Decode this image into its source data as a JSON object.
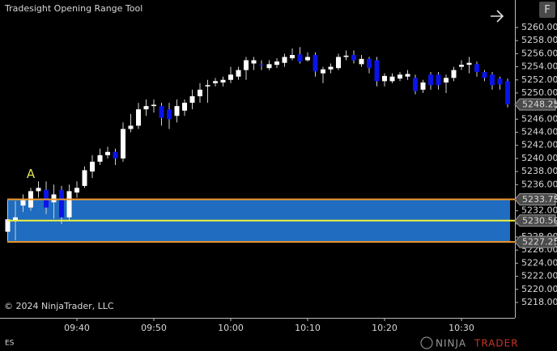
{
  "chart_data": {
    "type": "candlestick",
    "title": "Tradesight Opening Range Tool",
    "copyright": "© 2024 NinjaTrader, LLC",
    "instrument": "ES",
    "logo": {
      "left": "NINJA",
      "right": "TRADER"
    },
    "button": "F",
    "categories": [
      null,
      null,
      null,
      null,
      null,
      null,
      null,
      null,
      null,
      "09:40",
      null,
      null,
      null,
      null,
      null,
      null,
      null,
      null,
      null,
      "09:50",
      null,
      null,
      null,
      null,
      null,
      null,
      null,
      null,
      null,
      "10:00",
      null,
      null,
      null,
      null,
      null,
      null,
      null,
      null,
      null,
      "10:10",
      null,
      null,
      null,
      null,
      null,
      null,
      null,
      null,
      null,
      "10:20",
      null,
      null,
      null,
      null,
      null,
      null,
      null,
      null,
      null,
      "10:30",
      null,
      null,
      null,
      null,
      null,
      null
    ],
    "open": [
      5228.8,
      5230.5,
      5232.8,
      5232.5,
      5235,
      5235.2,
      5233.3,
      5235.2,
      5231,
      5234.8,
      5235.8,
      5238,
      5239.5,
      5240.5,
      5241,
      5240,
      5244.5,
      5245,
      5247.5,
      5248,
      5248,
      5247.5,
      5246.5,
      5247.3,
      5248.5,
      5249.5,
      5251,
      5251.5,
      5251.6,
      5252,
      5252.5,
      5253.5,
      5254.5,
      5254.3,
      5253.8,
      5254.3,
      5254.6,
      5255.3,
      5255.9,
      5255,
      5255.8,
      5253,
      5253.6,
      5253.8,
      5255.5,
      5255.8,
      5254.4,
      5255.2,
      5255,
      5251.8,
      5251.8,
      5252.2,
      5252.5,
      5252.3,
      5250.5,
      5252.8,
      5252.8,
      5251.6,
      5252.3,
      5254,
      5254.3,
      5254.4,
      5253.2,
      5252.8,
      5252.2,
      5251.8
    ],
    "high": [
      5233.6,
      5233.5,
      5234.5,
      5235.5,
      5236.5,
      5236.5,
      5236,
      5235.8,
      5236,
      5236.5,
      5238.8,
      5240.5,
      5241.5,
      5241.8,
      5241.5,
      5245.5,
      5246.8,
      5248.5,
      5249,
      5249,
      5248.5,
      5248.5,
      5249,
      5249,
      5250.5,
      5251.5,
      5252,
      5252.3,
      5252.5,
      5254,
      5254,
      5255.5,
      5255.5,
      5255,
      5255,
      5255.3,
      5256,
      5256.8,
      5257,
      5256.2,
      5256.2,
      5254,
      5254.5,
      5256,
      5256.5,
      5256.5,
      5255.8,
      5255.5,
      5255.5,
      5253,
      5253,
      5253.2,
      5253.5,
      5252.8,
      5252,
      5253.2,
      5253.2,
      5252.8,
      5254,
      5255,
      5255.5,
      5254.8,
      5253.5,
      5253.2,
      5252.5,
      5252.2
    ],
    "low": [
      5227.4,
      5227.5,
      5231.8,
      5232,
      5234,
      5231.5,
      5230.8,
      5230,
      5230.5,
      5234,
      5235.5,
      5237,
      5239,
      5240,
      5239,
      5239.5,
      5244,
      5244.5,
      5246.5,
      5247,
      5245,
      5244.5,
      5245.5,
      5246.5,
      5247.5,
      5248.5,
      5248.5,
      5251,
      5251,
      5251.5,
      5252,
      5252,
      5253.5,
      5253.5,
      5253.5,
      5253.8,
      5254,
      5255,
      5254.5,
      5254.8,
      5252.5,
      5251.5,
      5253,
      5253.5,
      5255,
      5254.5,
      5254,
      5253,
      5251,
      5251,
      5251.5,
      5251.8,
      5252,
      5249.8,
      5250,
      5250.5,
      5250.5,
      5250,
      5251.8,
      5253.5,
      5253,
      5252.5,
      5251.8,
      5250.5,
      5250.5,
      5247.8
    ],
    "close": [
      5230.7,
      5231,
      5233.6,
      5235,
      5235.5,
      5232.5,
      5234.5,
      5231,
      5235,
      5235.5,
      5238.2,
      5239.5,
      5240.5,
      5241,
      5240,
      5244.5,
      5245,
      5247.5,
      5248,
      5248.2,
      5246.2,
      5246,
      5248,
      5248.5,
      5249.5,
      5250.5,
      5251.2,
      5251.8,
      5252,
      5252.8,
      5253.5,
      5255,
      5255,
      5254.2,
      5254.4,
      5254.8,
      5255.5,
      5255.8,
      5254.8,
      5255.5,
      5253.3,
      5253.6,
      5254,
      5255.5,
      5255.7,
      5255,
      5255.2,
      5253.8,
      5251.8,
      5252.6,
      5252.5,
      5252.8,
      5252.9,
      5250.3,
      5251.6,
      5251.2,
      5251.2,
      5252.3,
      5253.5,
      5254.3,
      5254.6,
      5253.2,
      5252.3,
      5251.2,
      5251.3,
      5248.25
    ],
    "up_color": "#ffffff",
    "down_color": "#0a14e6",
    "wick_color": "#d0d0d0",
    "annotation": {
      "text": "A",
      "index": 3,
      "y": 5237.6,
      "color": "#e4e45a"
    },
    "opening_range": {
      "values": [
        5233.75,
        5230.5,
        5227.25
      ],
      "value_labels": [
        "5233.75",
        "5230.50",
        "5227.25"
      ],
      "fill": "#1f6cc0",
      "edge_color": "#f0962a",
      "mid_color": "#f2f23c"
    },
    "last_price": 5248.25,
    "ylim": [
      5215.65,
      5264.2
    ],
    "yticks": [
      {
        "value": 5218,
        "label": "5218.00"
      },
      {
        "value": 5220,
        "label": "5220.00"
      },
      {
        "value": 5222,
        "label": "5222.00"
      },
      {
        "value": 5224,
        "label": "5224.00"
      },
      {
        "value": 5226,
        "label": "5226.00"
      },
      {
        "value": 5228,
        "label": "5228.00"
      },
      {
        "value": 5230,
        "label": "5230.00"
      },
      {
        "value": 5232,
        "label": "5232.00"
      },
      {
        "value": 5234,
        "label": "5234.00"
      },
      {
        "value": 5236,
        "label": "5236.00"
      },
      {
        "value": 5238,
        "label": "5238.00"
      },
      {
        "value": 5240,
        "label": "5240.00"
      },
      {
        "value": 5242,
        "label": "5242.00"
      },
      {
        "value": 5244,
        "label": "5244.00"
      },
      {
        "value": 5246,
        "label": "5246.00"
      },
      {
        "value": 5248,
        "label": "5248.00"
      },
      {
        "value": 5250,
        "label": "5250.00"
      },
      {
        "value": 5252,
        "label": "5252.00"
      },
      {
        "value": 5254,
        "label": "5254.00"
      },
      {
        "value": 5256,
        "label": "5256.00"
      },
      {
        "value": 5258,
        "label": "5258.00"
      },
      {
        "value": 5260,
        "label": "5260.00"
      }
    ]
  }
}
